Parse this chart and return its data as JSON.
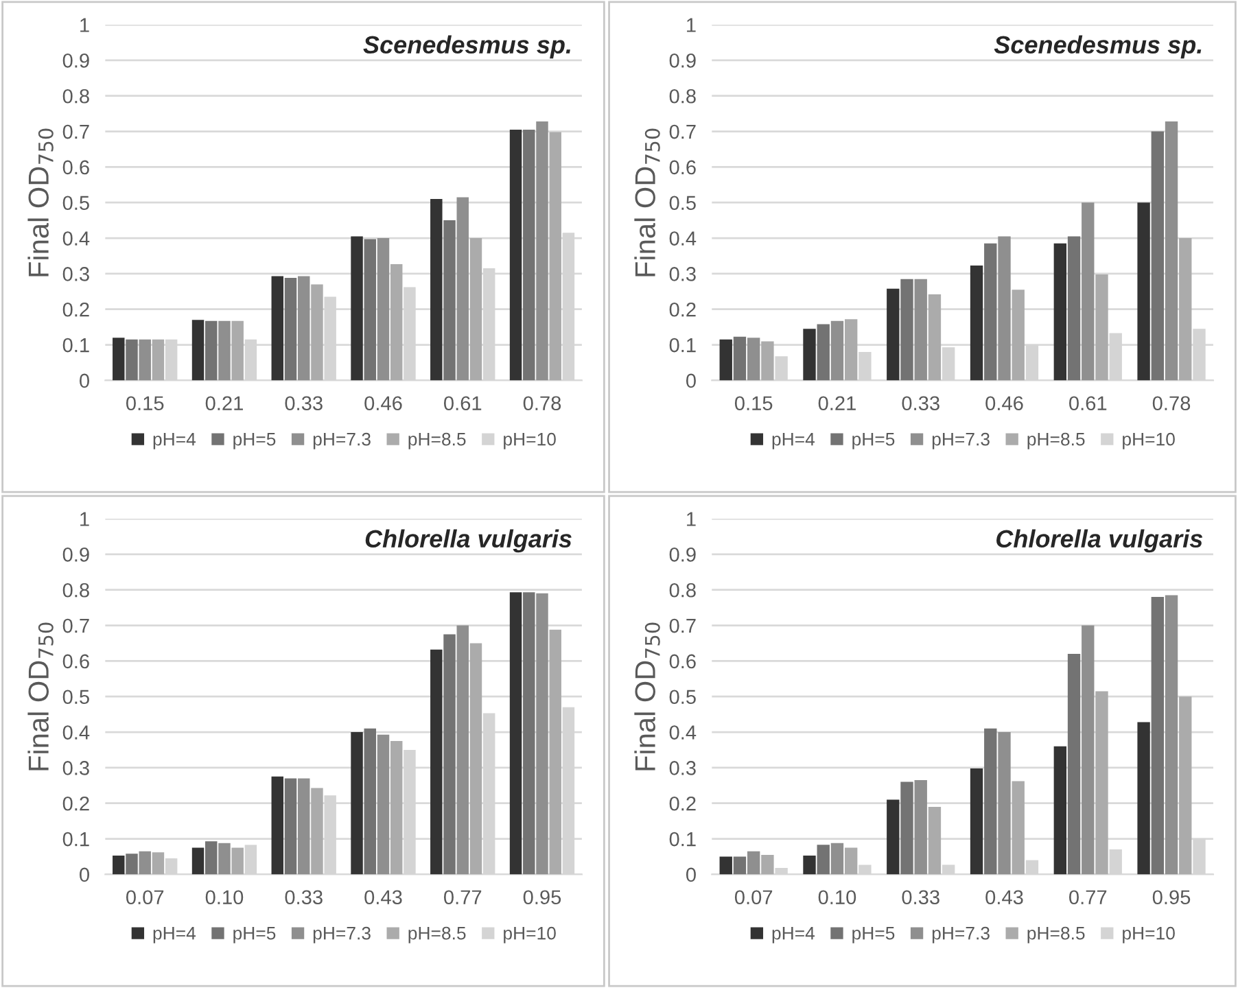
{
  "chart_data": [
    {
      "type": "bar",
      "title": "Scenedesmus sp.",
      "ylabel": "Final OD$_{750}$",
      "categories": [
        "0.15",
        "0.21",
        "0.33",
        "0.46",
        "0.61",
        "0.78"
      ],
      "ylim": [
        0,
        1
      ],
      "yticks": [
        0,
        0.1,
        0.2,
        0.3,
        0.4,
        0.5,
        0.6,
        0.7,
        0.8,
        0.9,
        1
      ],
      "grid": "y",
      "legend": "bottom",
      "series": [
        {
          "name": "pH=4",
          "color": "#333333",
          "values": [
            0.12,
            0.17,
            0.293,
            0.405,
            0.51,
            0.705
          ]
        },
        {
          "name": "pH=5",
          "color": "#737373",
          "values": [
            0.115,
            0.167,
            0.288,
            0.397,
            0.45,
            0.705
          ]
        },
        {
          "name": "pH=7.3",
          "color": "#8f8f8f",
          "values": [
            0.115,
            0.167,
            0.293,
            0.4,
            0.515,
            0.728
          ]
        },
        {
          "name": "pH=8.5",
          "color": "#ababab",
          "values": [
            0.115,
            0.167,
            0.27,
            0.327,
            0.4,
            0.698
          ]
        },
        {
          "name": "pH=10",
          "color": "#d4d4d4",
          "values": [
            0.115,
            0.115,
            0.235,
            0.262,
            0.315,
            0.415
          ]
        }
      ]
    },
    {
      "type": "bar",
      "title": "Scenedesmus sp.",
      "ylabel": "Final OD$_{750}$",
      "categories": [
        "0.15",
        "0.21",
        "0.33",
        "0.46",
        "0.61",
        "0.78"
      ],
      "ylim": [
        0,
        1
      ],
      "yticks": [
        0,
        0.1,
        0.2,
        0.3,
        0.4,
        0.5,
        0.6,
        0.7,
        0.8,
        0.9,
        1
      ],
      "grid": "y",
      "legend": "bottom",
      "series": [
        {
          "name": "pH=4",
          "color": "#333333",
          "values": [
            0.115,
            0.145,
            0.258,
            0.323,
            0.385,
            0.5
          ]
        },
        {
          "name": "pH=5",
          "color": "#737373",
          "values": [
            0.123,
            0.158,
            0.285,
            0.385,
            0.405,
            0.7
          ]
        },
        {
          "name": "pH=7.3",
          "color": "#8f8f8f",
          "values": [
            0.12,
            0.167,
            0.285,
            0.405,
            0.5,
            0.728
          ]
        },
        {
          "name": "pH=8.5",
          "color": "#ababab",
          "values": [
            0.11,
            0.172,
            0.242,
            0.255,
            0.298,
            0.4
          ]
        },
        {
          "name": "pH=10",
          "color": "#d4d4d4",
          "values": [
            0.068,
            0.08,
            0.093,
            0.1,
            0.133,
            0.145
          ]
        }
      ]
    },
    {
      "type": "bar",
      "title": "Chlorella vulgaris",
      "ylabel": "Final OD$_{750}$",
      "categories": [
        "0.07",
        "0.10",
        "0.33",
        "0.43",
        "0.77",
        "0.95"
      ],
      "ylim": [
        0,
        1
      ],
      "yticks": [
        0,
        0.1,
        0.2,
        0.3,
        0.4,
        0.5,
        0.6,
        0.7,
        0.8,
        0.9,
        1
      ],
      "grid": "y",
      "legend": "bottom",
      "series": [
        {
          "name": "pH=4",
          "color": "#333333",
          "values": [
            0.053,
            0.075,
            0.275,
            0.4,
            0.632,
            0.793
          ]
        },
        {
          "name": "pH=5",
          "color": "#737373",
          "values": [
            0.058,
            0.093,
            0.27,
            0.41,
            0.675,
            0.793
          ]
        },
        {
          "name": "pH=7.3",
          "color": "#8f8f8f",
          "values": [
            0.065,
            0.088,
            0.27,
            0.393,
            0.7,
            0.79
          ]
        },
        {
          "name": "pH=8.5",
          "color": "#ababab",
          "values": [
            0.062,
            0.075,
            0.243,
            0.375,
            0.65,
            0.688
          ]
        },
        {
          "name": "pH=10",
          "color": "#d4d4d4",
          "values": [
            0.045,
            0.083,
            0.222,
            0.35,
            0.453,
            0.47
          ]
        }
      ]
    },
    {
      "type": "bar",
      "title": "Chlorella vulgaris",
      "ylabel": "Final OD$_{750}$",
      "categories": [
        "0.07",
        "0.10",
        "0.33",
        "0.43",
        "0.77",
        "0.95"
      ],
      "ylim": [
        0,
        1
      ],
      "yticks": [
        0,
        0.1,
        0.2,
        0.3,
        0.4,
        0.5,
        0.6,
        0.7,
        0.8,
        0.9,
        1
      ],
      "grid": "y",
      "legend": "bottom",
      "series": [
        {
          "name": "pH=4",
          "color": "#333333",
          "values": [
            0.05,
            0.053,
            0.21,
            0.298,
            0.36,
            0.428
          ]
        },
        {
          "name": "pH=5",
          "color": "#737373",
          "values": [
            0.05,
            0.083,
            0.26,
            0.41,
            0.62,
            0.78
          ]
        },
        {
          "name": "pH=7.3",
          "color": "#8f8f8f",
          "values": [
            0.065,
            0.088,
            0.265,
            0.4,
            0.7,
            0.785
          ]
        },
        {
          "name": "pH=8.5",
          "color": "#ababab",
          "values": [
            0.055,
            0.075,
            0.19,
            0.262,
            0.515,
            0.5
          ]
        },
        {
          "name": "pH=10",
          "color": "#d4d4d4",
          "values": [
            0.018,
            0.027,
            0.027,
            0.04,
            0.07,
            0.1
          ]
        }
      ]
    }
  ]
}
